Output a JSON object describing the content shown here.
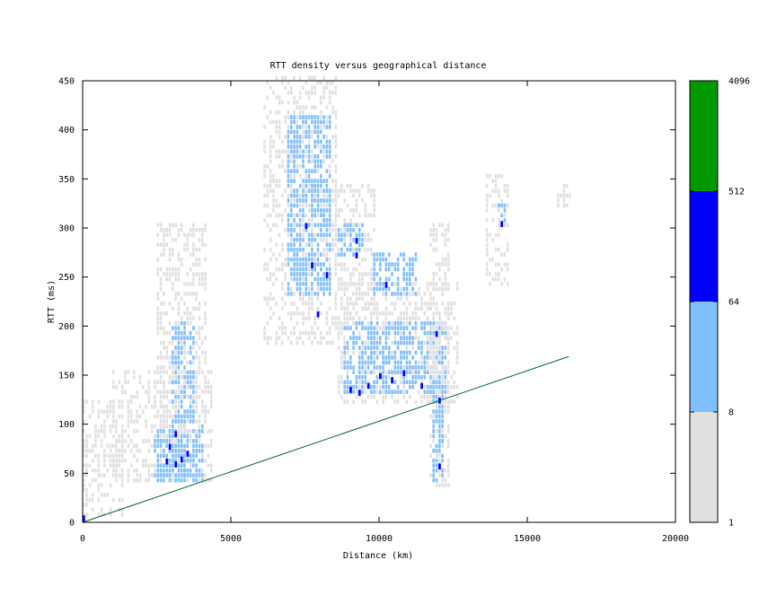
{
  "chart_data": {
    "type": "heatmap",
    "title": "RTT density versus geographical distance",
    "xlabel": "Distance (km)",
    "ylabel": "RTT (ms)",
    "xlim": [
      0,
      20000
    ],
    "ylim": [
      0,
      450
    ],
    "x_ticks": [
      0,
      5000,
      10000,
      15000,
      20000
    ],
    "y_ticks": [
      0,
      50,
      100,
      150,
      200,
      250,
      300,
      350,
      400,
      450
    ],
    "colorbar": {
      "scale": "log",
      "labels": [
        "1",
        "8",
        "64",
        "512",
        "4096"
      ],
      "bands": [
        {
          "from": 1,
          "to": 8,
          "color": "#e0e0e0"
        },
        {
          "from": 8,
          "to": 64,
          "color": "#80bfff"
        },
        {
          "from": 64,
          "to": 512,
          "color": "#0000ff"
        },
        {
          "from": 512,
          "to": 4096,
          "color": "#009900"
        }
      ]
    },
    "reference_line": {
      "color": "#006633",
      "points": [
        [
          0,
          0
        ],
        [
          16400,
          169
        ]
      ]
    },
    "density_clusters": [
      {
        "x": [
          -100,
          1300
        ],
        "y": [
          0,
          120
        ],
        "level": 1
      },
      {
        "x": [
          1000,
          4300
        ],
        "y": [
          40,
          150
        ],
        "level": 1
      },
      {
        "x": [
          2400,
          4000
        ],
        "y": [
          40,
          95
        ],
        "level": 2
      },
      {
        "x": [
          2600,
          3600
        ],
        "y": [
          45,
          80
        ],
        "level": 2
      },
      {
        "x": [
          2500,
          4100
        ],
        "y": [
          90,
          300
        ],
        "level": 1
      },
      {
        "x": [
          3000,
          3700
        ],
        "y": [
          100,
          200
        ],
        "level": 2
      },
      {
        "x": [
          6100,
          8500
        ],
        "y": [
          180,
          450
        ],
        "level": 1
      },
      {
        "x": [
          6900,
          8300
        ],
        "y": [
          230,
          410
        ],
        "level": 2
      },
      {
        "x": [
          8500,
          9800
        ],
        "y": [
          200,
          340
        ],
        "level": 1
      },
      {
        "x": [
          8600,
          9400
        ],
        "y": [
          270,
          300
        ],
        "level": 2
      },
      {
        "x": [
          8600,
          12600
        ],
        "y": [
          120,
          240
        ],
        "level": 1
      },
      {
        "x": [
          8800,
          12200
        ],
        "y": [
          130,
          200
        ],
        "level": 2
      },
      {
        "x": [
          9800,
          11200
        ],
        "y": [
          230,
          270
        ],
        "level": 2
      },
      {
        "x": [
          11700,
          12300
        ],
        "y": [
          35,
          300
        ],
        "level": 1
      },
      {
        "x": [
          11800,
          12100
        ],
        "y": [
          40,
          140
        ],
        "level": 2
      },
      {
        "x": [
          13600,
          14300
        ],
        "y": [
          240,
          350
        ],
        "level": 1
      },
      {
        "x": [
          14000,
          14200
        ],
        "y": [
          300,
          320
        ],
        "level": 2
      },
      {
        "x": [
          16000,
          16400
        ],
        "y": [
          320,
          340
        ],
        "level": 1
      }
    ],
    "high_density_cells": [
      [
        2800,
        60
      ],
      [
        3100,
        57
      ],
      [
        3300,
        62
      ],
      [
        3500,
        68
      ],
      [
        2900,
        75
      ],
      [
        3100,
        88
      ],
      [
        0,
        2
      ],
      [
        7500,
        300
      ],
      [
        7700,
        260
      ],
      [
        7900,
        210
      ],
      [
        8200,
        250
      ],
      [
        9200,
        285
      ],
      [
        9200,
        270
      ],
      [
        10200,
        240
      ],
      [
        9000,
        133
      ],
      [
        9300,
        130
      ],
      [
        9600,
        137
      ],
      [
        10000,
        147
      ],
      [
        10400,
        143
      ],
      [
        10800,
        150
      ],
      [
        11400,
        137
      ],
      [
        11900,
        190
      ],
      [
        12000,
        122
      ],
      [
        12000,
        55
      ],
      [
        14100,
        302
      ]
    ]
  }
}
